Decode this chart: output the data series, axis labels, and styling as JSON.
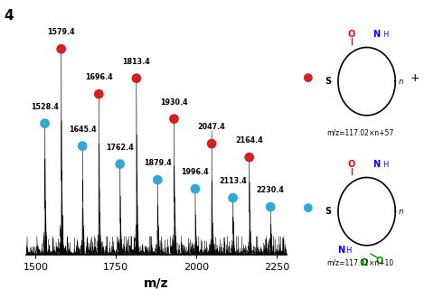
{
  "title_label": "4",
  "xlabel": "m/z",
  "xlim": [
    1470,
    2280
  ],
  "ylim": [
    0,
    1.05
  ],
  "xticks": [
    1500,
    1750,
    2000,
    2250
  ],
  "red_peaks": [
    1579.4,
    1696.4,
    1813.4,
    1930.4,
    2047.4,
    2164.4
  ],
  "cyan_peaks": [
    1528.4,
    1645.4,
    1762.4,
    1879.4,
    1996.4,
    2113.4,
    2230.4
  ],
  "red_heights": [
    0.88,
    0.68,
    0.75,
    0.57,
    0.46,
    0.4
  ],
  "cyan_heights": [
    0.55,
    0.45,
    0.37,
    0.3,
    0.26,
    0.22,
    0.18
  ],
  "red_color": "#d42020",
  "cyan_color": "#30a8d8",
  "dot_size": 60,
  "formula_red": "m/z=117.02×n+57",
  "formula_cyan": "m/z=117.02×n+10",
  "background": "#ffffff"
}
